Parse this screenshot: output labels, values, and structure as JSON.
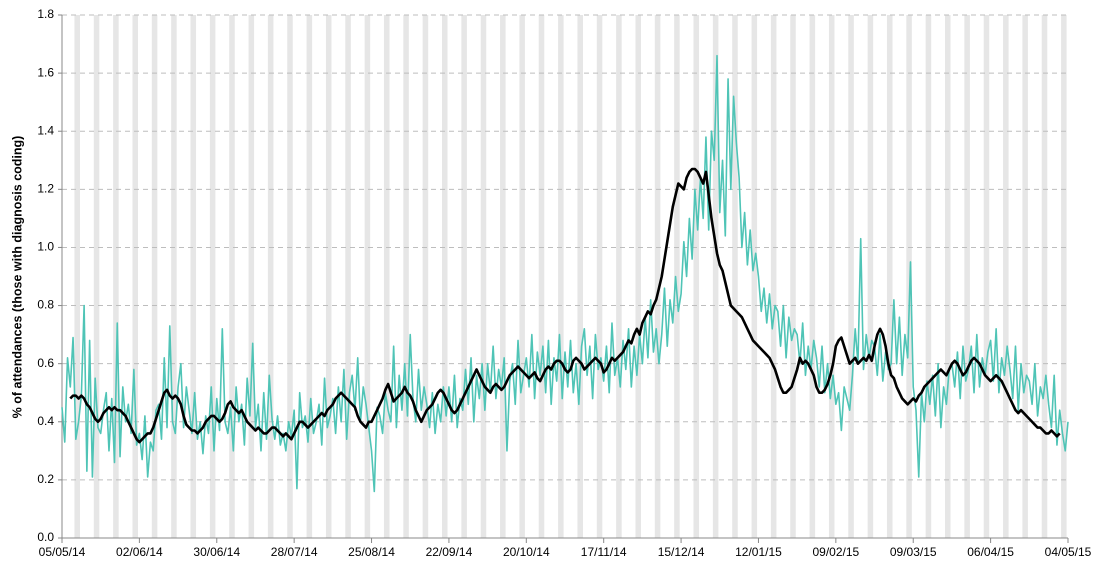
{
  "chart_data": {
    "type": "line",
    "y_label": "% of attendances (those with diagnosis coding)",
    "categories": [
      "05/05/14",
      null,
      null,
      null,
      null,
      null,
      null,
      null,
      null,
      null,
      null,
      null,
      null,
      null,
      null,
      null,
      null,
      null,
      null,
      null,
      null,
      null,
      null,
      null,
      null,
      null,
      null,
      null,
      "02/06/14",
      null,
      null,
      null,
      null,
      null,
      null,
      null,
      null,
      null,
      null,
      null,
      null,
      null,
      null,
      null,
      null,
      null,
      null,
      null,
      null,
      null,
      null,
      null,
      null,
      null,
      null,
      null,
      "30/06/14",
      null,
      null,
      null,
      null,
      null,
      null,
      null,
      null,
      null,
      null,
      null,
      null,
      null,
      null,
      null,
      null,
      null,
      null,
      null,
      null,
      null,
      null,
      null,
      null,
      null,
      null,
      null,
      "28/07/14",
      null,
      null,
      null,
      null,
      null,
      null,
      null,
      null,
      null,
      null,
      null,
      null,
      null,
      null,
      null,
      null,
      null,
      null,
      null,
      null,
      null,
      null,
      null,
      null,
      null,
      null,
      null,
      "25/08/14",
      null,
      null,
      null,
      null,
      null,
      null,
      null,
      null,
      null,
      null,
      null,
      null,
      null,
      null,
      null,
      null,
      null,
      null,
      null,
      null,
      null,
      null,
      null,
      null,
      null,
      null,
      null,
      "22/09/14",
      null,
      null,
      null,
      null,
      null,
      null,
      null,
      null,
      null,
      null,
      null,
      null,
      null,
      null,
      null,
      null,
      null,
      null,
      null,
      null,
      null,
      null,
      null,
      null,
      null,
      null,
      null,
      "20/10/14",
      null,
      null,
      null,
      null,
      null,
      null,
      null,
      null,
      null,
      null,
      null,
      null,
      null,
      null,
      null,
      null,
      null,
      null,
      null,
      null,
      null,
      null,
      null,
      null,
      null,
      null,
      null,
      "17/11/14",
      null,
      null,
      null,
      null,
      null,
      null,
      null,
      null,
      null,
      null,
      null,
      null,
      null,
      null,
      null,
      null,
      null,
      null,
      null,
      null,
      null,
      null,
      null,
      null,
      null,
      null,
      null,
      "15/12/14",
      null,
      null,
      null,
      null,
      null,
      null,
      null,
      null,
      null,
      null,
      null,
      null,
      null,
      null,
      null,
      null,
      null,
      null,
      null,
      null,
      null,
      null,
      null,
      null,
      null,
      null,
      null,
      "12/01/15",
      null,
      null,
      null,
      null,
      null,
      null,
      null,
      null,
      null,
      null,
      null,
      null,
      null,
      null,
      null,
      null,
      null,
      null,
      null,
      null,
      null,
      null,
      null,
      null,
      null,
      null,
      null,
      "09/02/15",
      null,
      null,
      null,
      null,
      null,
      null,
      null,
      null,
      null,
      null,
      null,
      null,
      null,
      null,
      null,
      null,
      null,
      null,
      null,
      null,
      null,
      null,
      null,
      null,
      null,
      null,
      null,
      "09/03/15",
      null,
      null,
      null,
      null,
      null,
      null,
      null,
      null,
      null,
      null,
      null,
      null,
      null,
      null,
      null,
      null,
      null,
      null,
      null,
      null,
      null,
      null,
      null,
      null,
      null,
      null,
      null,
      "06/04/15",
      null,
      null,
      null,
      null,
      null,
      null,
      null,
      null,
      null,
      null,
      null,
      null,
      null,
      null,
      null,
      null,
      null,
      null,
      null,
      null,
      null,
      null,
      null,
      null,
      null,
      null,
      null,
      "04/05/15"
    ],
    "series": [
      {
        "color": "#4fc4b6",
        "values": [
          0.45,
          0.33,
          0.62,
          0.52,
          0.69,
          0.34,
          0.4,
          0.49,
          0.8,
          0.23,
          0.68,
          0.21,
          0.55,
          0.38,
          0.36,
          0.44,
          0.5,
          0.3,
          0.48,
          0.26,
          0.74,
          0.28,
          0.52,
          0.4,
          0.46,
          0.36,
          0.58,
          0.32,
          0.36,
          0.27,
          0.42,
          0.21,
          0.33,
          0.3,
          0.44,
          0.46,
          0.34,
          0.62,
          0.38,
          0.73,
          0.4,
          0.36,
          0.52,
          0.6,
          0.38,
          0.52,
          0.44,
          0.36,
          0.5,
          0.34,
          0.4,
          0.29,
          0.42,
          0.36,
          0.52,
          0.3,
          0.48,
          0.37,
          0.72,
          0.4,
          0.36,
          0.45,
          0.3,
          0.52,
          0.4,
          0.46,
          0.32,
          0.55,
          0.42,
          0.67,
          0.38,
          0.46,
          0.3,
          0.5,
          0.34,
          0.56,
          0.41,
          0.34,
          0.42,
          0.32,
          0.36,
          0.3,
          0.4,
          0.35,
          0.44,
          0.17,
          0.5,
          0.38,
          0.42,
          0.33,
          0.48,
          0.36,
          0.4,
          0.46,
          0.32,
          0.55,
          0.38,
          0.42,
          0.48,
          0.36,
          0.52,
          0.4,
          0.58,
          0.34,
          0.5,
          0.56,
          0.44,
          0.62,
          0.4,
          0.52,
          0.46,
          0.38,
          0.3,
          0.16,
          0.45,
          0.42,
          0.36,
          0.5,
          0.44,
          0.4,
          0.66,
          0.38,
          0.56,
          0.44,
          0.6,
          0.42,
          0.7,
          0.48,
          0.4,
          0.58,
          0.44,
          0.52,
          0.46,
          0.38,
          0.5,
          0.36,
          0.46,
          0.4,
          0.52,
          0.42,
          0.52,
          0.4,
          0.56,
          0.38,
          0.48,
          0.44,
          0.58,
          0.46,
          0.62,
          0.4,
          0.56,
          0.48,
          0.6,
          0.44,
          0.6,
          0.5,
          0.66,
          0.48,
          0.58,
          0.52,
          0.62,
          0.3,
          0.54,
          0.6,
          0.46,
          0.68,
          0.5,
          0.56,
          0.62,
          0.52,
          0.7,
          0.48,
          0.64,
          0.56,
          0.66,
          0.5,
          0.68,
          0.46,
          0.62,
          0.54,
          0.7,
          0.48,
          0.64,
          0.52,
          0.68,
          0.5,
          0.6,
          0.46,
          0.66,
          0.72,
          0.56,
          0.66,
          0.48,
          0.7,
          0.58,
          0.62,
          0.54,
          0.66,
          0.5,
          0.74,
          0.56,
          0.62,
          0.52,
          0.68,
          0.58,
          0.72,
          0.52,
          0.66,
          0.56,
          0.7,
          0.6,
          0.76,
          0.62,
          0.82,
          0.64,
          0.72,
          0.6,
          0.7,
          0.86,
          0.66,
          0.82,
          0.74,
          0.9,
          0.78,
          0.84,
          1.02,
          0.9,
          1.1,
          0.96,
          1.2,
          1.06,
          1.24,
          1.1,
          1.38,
          1.06,
          1.4,
          1.3,
          1.66,
          1.12,
          1.3,
          1.04,
          1.58,
          1.2,
          1.52,
          1.36,
          1.24,
          1.0,
          1.12,
          0.94,
          1.06,
          0.92,
          0.98,
          0.9,
          0.78,
          0.86,
          0.74,
          0.84,
          0.72,
          0.8,
          0.78,
          0.66,
          0.8,
          0.62,
          0.76,
          0.68,
          0.72,
          0.7,
          0.6,
          0.74,
          0.56,
          0.66,
          0.58,
          0.68,
          0.62,
          0.52,
          0.66,
          0.5,
          0.6,
          0.48,
          0.56,
          0.46,
          0.5,
          0.37,
          0.52,
          0.48,
          0.44,
          0.56,
          0.72,
          0.6,
          1.03,
          0.58,
          0.7,
          0.62,
          0.68,
          0.66,
          0.56,
          0.7,
          0.54,
          0.64,
          0.58,
          0.6,
          0.82,
          0.6,
          0.76,
          0.56,
          0.7,
          0.62,
          0.95,
          0.52,
          0.44,
          0.21,
          0.5,
          0.4,
          0.54,
          0.46,
          0.56,
          0.42,
          0.6,
          0.38,
          0.52,
          0.46,
          0.58,
          0.6,
          0.52,
          0.64,
          0.48,
          0.66,
          0.54,
          0.58,
          0.66,
          0.5,
          0.7,
          0.52,
          0.62,
          0.56,
          0.64,
          0.68,
          0.54,
          0.72,
          0.5,
          0.62,
          0.56,
          0.66,
          0.58,
          0.48,
          0.66,
          0.44,
          0.6,
          0.5,
          0.56,
          0.54,
          0.46,
          0.6,
          0.42,
          0.52,
          0.48,
          0.56,
          0.46,
          0.38,
          0.56,
          0.32,
          0.44,
          0.36,
          0.3,
          0.4
        ]
      },
      {
        "color": "#000000",
        "values": [
          null,
          null,
          null,
          0.48,
          0.49,
          0.49,
          0.48,
          0.49,
          0.48,
          0.46,
          0.45,
          0.43,
          0.41,
          0.4,
          0.41,
          0.43,
          0.44,
          0.45,
          0.44,
          0.45,
          0.44,
          0.44,
          0.43,
          0.42,
          0.4,
          0.38,
          0.36,
          0.34,
          0.33,
          0.34,
          0.35,
          0.36,
          0.36,
          0.38,
          0.41,
          0.44,
          0.47,
          0.5,
          0.51,
          0.49,
          0.48,
          0.49,
          0.48,
          0.46,
          0.42,
          0.39,
          0.38,
          0.37,
          0.37,
          0.36,
          0.37,
          0.38,
          0.4,
          0.41,
          0.42,
          0.42,
          0.41,
          0.4,
          0.41,
          0.43,
          0.46,
          0.47,
          0.45,
          0.44,
          0.43,
          0.44,
          0.42,
          0.4,
          0.39,
          0.38,
          0.37,
          0.38,
          0.37,
          0.36,
          0.36,
          0.37,
          0.38,
          0.38,
          0.37,
          0.36,
          0.35,
          0.36,
          0.35,
          0.34,
          0.36,
          0.38,
          0.4,
          0.4,
          0.39,
          0.38,
          0.39,
          0.4,
          0.41,
          0.42,
          0.43,
          0.42,
          0.44,
          0.45,
          0.46,
          0.48,
          0.49,
          0.5,
          0.49,
          0.48,
          0.47,
          0.46,
          0.45,
          0.42,
          0.4,
          0.39,
          0.38,
          0.4,
          0.4,
          0.42,
          0.44,
          0.46,
          0.48,
          0.51,
          0.53,
          0.5,
          0.47,
          0.48,
          0.49,
          0.5,
          0.52,
          0.5,
          0.49,
          0.47,
          0.44,
          0.42,
          0.4,
          0.42,
          0.44,
          0.45,
          0.46,
          0.48,
          0.5,
          0.51,
          0.5,
          0.48,
          0.46,
          0.44,
          0.43,
          0.44,
          0.46,
          0.48,
          0.5,
          0.52,
          0.54,
          0.56,
          0.58,
          0.56,
          0.54,
          0.52,
          0.51,
          0.5,
          0.52,
          0.53,
          0.52,
          0.51,
          0.52,
          0.54,
          0.56,
          0.57,
          0.58,
          0.59,
          0.58,
          0.57,
          0.56,
          0.55,
          0.56,
          0.57,
          0.55,
          0.54,
          0.56,
          0.58,
          0.59,
          0.58,
          0.6,
          0.61,
          0.61,
          0.6,
          0.58,
          0.57,
          0.58,
          0.61,
          0.62,
          0.61,
          0.6,
          0.58,
          0.59,
          0.6,
          0.61,
          0.62,
          0.61,
          0.6,
          0.57,
          0.58,
          0.6,
          0.62,
          0.61,
          0.62,
          0.63,
          0.64,
          0.66,
          0.68,
          0.67,
          0.7,
          0.72,
          0.7,
          0.74,
          0.76,
          0.78,
          0.77,
          0.8,
          0.82,
          0.86,
          0.9,
          0.96,
          1.02,
          1.08,
          1.14,
          1.18,
          1.22,
          1.21,
          1.2,
          1.24,
          1.26,
          1.27,
          1.27,
          1.26,
          1.24,
          1.22,
          1.26,
          1.18,
          1.1,
          1.04,
          0.98,
          0.94,
          0.92,
          0.88,
          0.84,
          0.8,
          0.79,
          0.78,
          0.77,
          0.76,
          0.74,
          0.72,
          0.7,
          0.68,
          0.67,
          0.66,
          0.65,
          0.64,
          0.63,
          0.62,
          0.6,
          0.58,
          0.55,
          0.52,
          0.5,
          0.5,
          0.51,
          0.52,
          0.55,
          0.58,
          0.62,
          0.6,
          0.61,
          0.6,
          0.58,
          0.56,
          0.52,
          0.5,
          0.5,
          0.51,
          0.53,
          0.56,
          0.6,
          0.66,
          0.68,
          0.69,
          0.66,
          0.63,
          0.6,
          0.61,
          0.62,
          0.6,
          0.61,
          0.62,
          0.61,
          0.63,
          0.61,
          0.66,
          0.7,
          0.72,
          0.7,
          0.66,
          0.6,
          0.56,
          0.55,
          0.52,
          0.5,
          0.48,
          0.47,
          0.46,
          0.47,
          0.48,
          0.47,
          0.49,
          0.5,
          0.52,
          0.53,
          0.54,
          0.55,
          0.56,
          0.57,
          0.58,
          0.57,
          0.56,
          0.58,
          0.6,
          0.61,
          0.6,
          0.58,
          0.56,
          0.57,
          0.59,
          0.61,
          0.62,
          0.61,
          0.6,
          0.58,
          0.56,
          0.55,
          0.54,
          0.55,
          0.56,
          0.55,
          0.54,
          0.52,
          0.5,
          0.48,
          0.46,
          0.44,
          0.43,
          0.44,
          0.43,
          0.42,
          0.41,
          0.4,
          0.39,
          0.38,
          0.38,
          0.37,
          0.36,
          0.36,
          0.37,
          0.36,
          0.35,
          0.36,
          null,
          null,
          null
        ]
      }
    ],
    "ylim": [
      0,
      1.8
    ],
    "yticks": [
      {
        "value": 0,
        "label": "0.0"
      },
      {
        "value": 0.2,
        "label": "0.2"
      },
      {
        "value": 0.4,
        "label": "0.4"
      },
      {
        "value": 0.6,
        "label": "0.6"
      },
      {
        "value": 0.8,
        "label": "0.8"
      },
      {
        "value": 1,
        "label": "1.0"
      },
      {
        "value": 1.2,
        "label": "1.2"
      },
      {
        "value": 1.4,
        "label": "1.4"
      },
      {
        "value": 1.6,
        "label": "1.6"
      },
      {
        "value": 1.8,
        "label": "1.8"
      }
    ],
    "grid": true
  }
}
